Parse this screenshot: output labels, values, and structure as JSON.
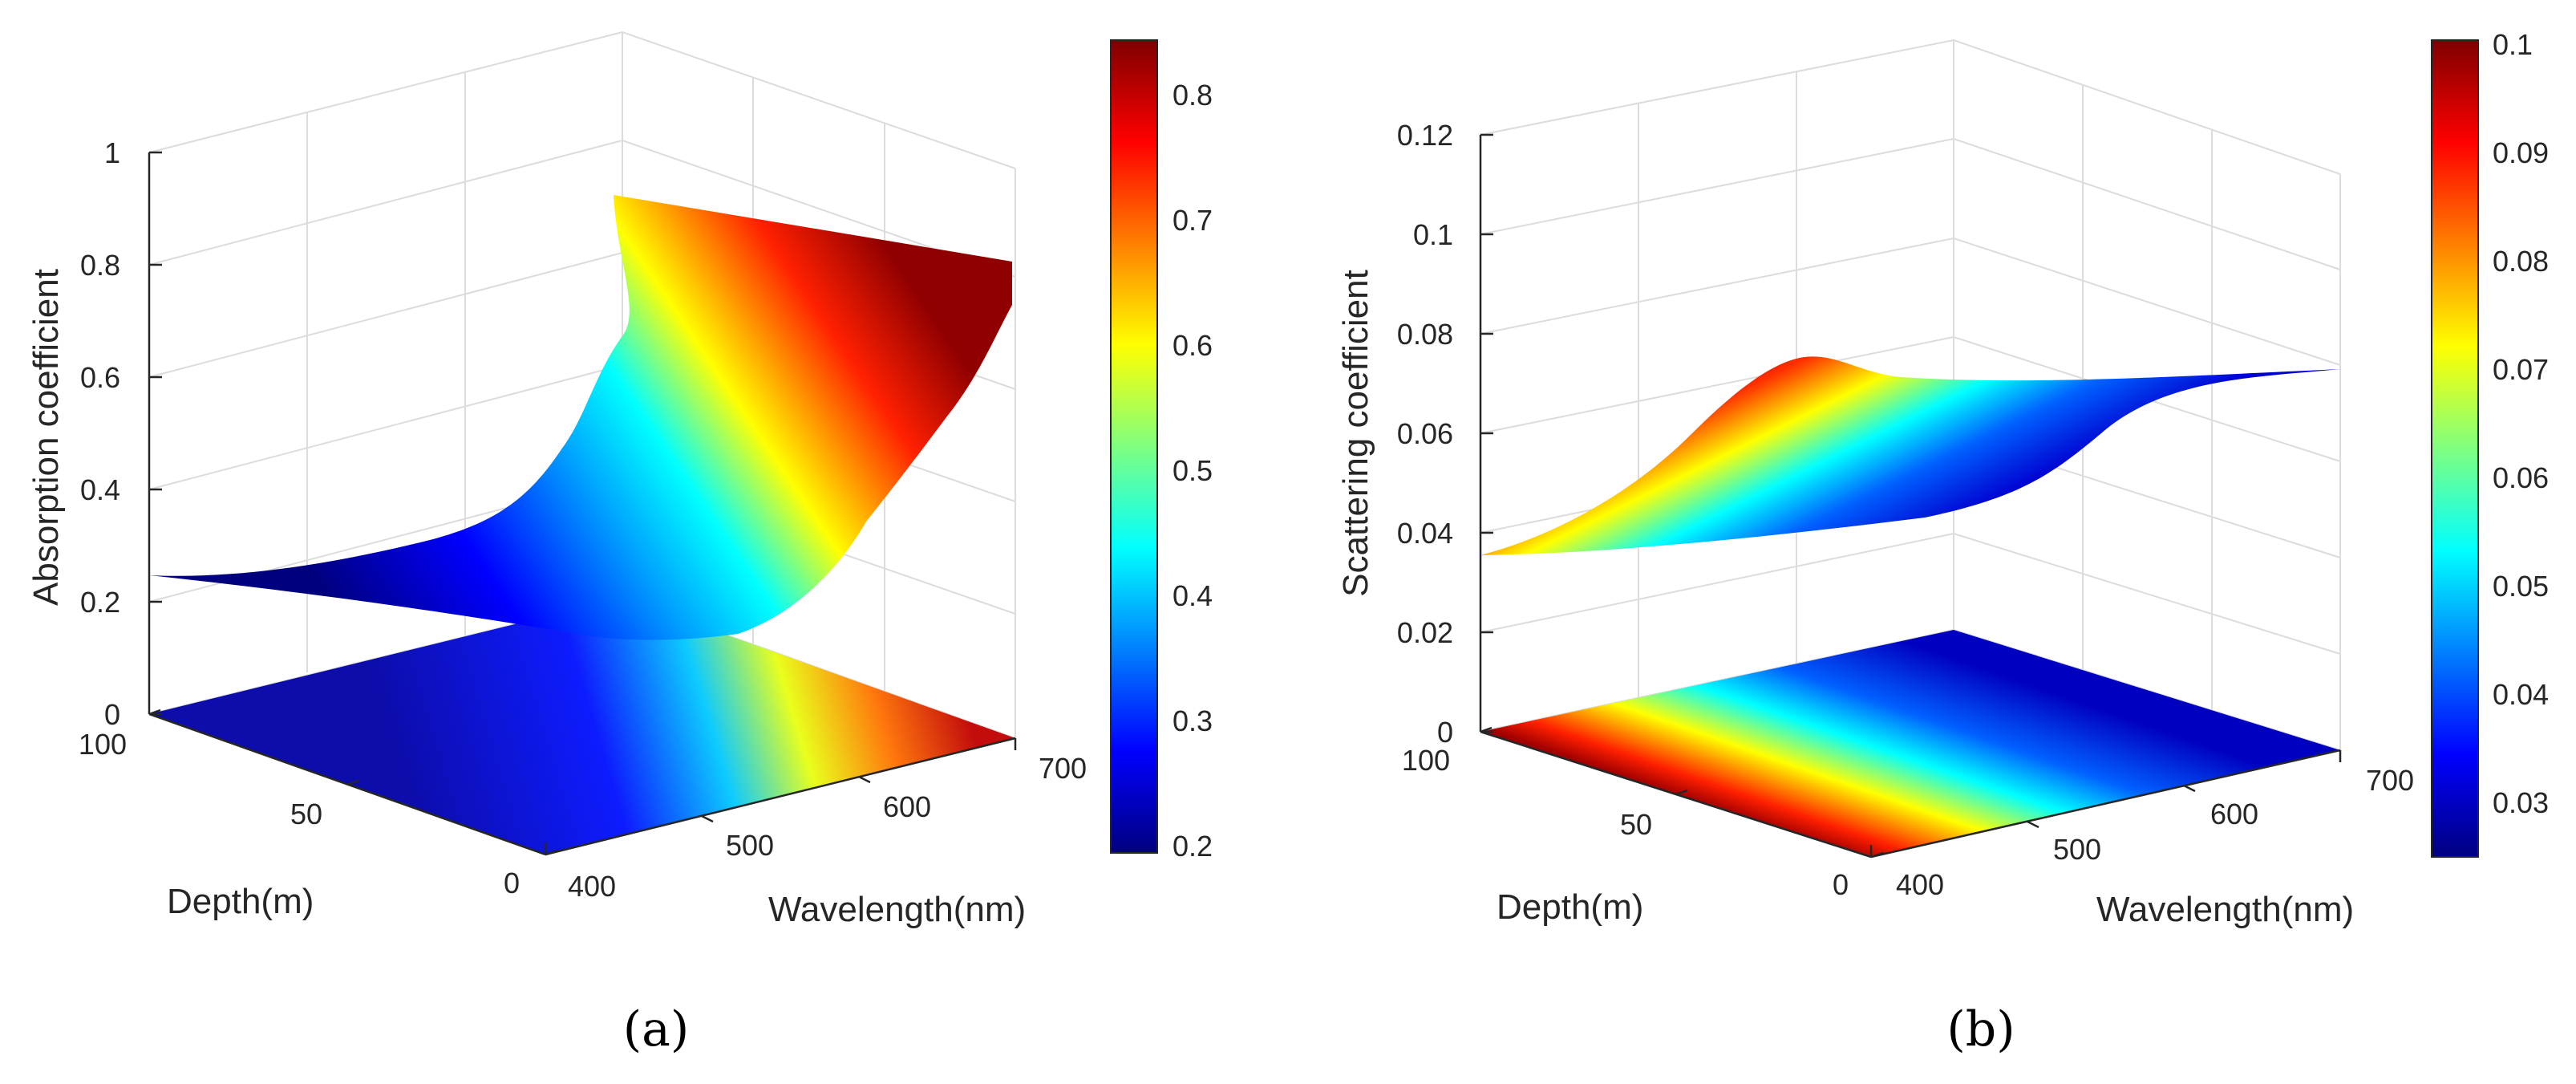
{
  "chart_data": [
    {
      "type": "surface3d",
      "caption": "(a)",
      "zlabel": "Absorption coefficient",
      "xlabel": "Wavelength(nm)",
      "ylabel": "Depth(m)",
      "xlim": [
        400,
        700
      ],
      "ylim": [
        0,
        100
      ],
      "zlim": [
        0,
        1
      ],
      "xticks": [
        "400",
        "500",
        "600",
        "700"
      ],
      "yticks": [
        "0",
        "50",
        "100"
      ],
      "zticks": [
        "0",
        "0.2",
        "0.4",
        "0.6",
        "0.8",
        "1"
      ],
      "colorbar": {
        "range": [
          0.2,
          0.85
        ],
        "ticks": [
          "0.2",
          "0.3",
          "0.4",
          "0.5",
          "0.6",
          "0.7",
          "0.8"
        ]
      },
      "colormap": "jet",
      "grid": true,
      "projection": "contour at z = 0",
      "profiles": {
        "wavelength_nm": [
          400,
          450,
          500,
          550,
          600,
          650,
          700
        ],
        "depth_100m_surface_edge": [
          0.25,
          0.23,
          0.21,
          0.2,
          0.21,
          0.22,
          0.22
        ],
        "depth_0m_surface_edge": [
          0.84,
          0.83,
          0.82,
          0.8,
          0.79,
          0.78,
          0.76
        ]
      }
    },
    {
      "type": "surface3d",
      "caption": "(b)",
      "zlabel": "Scattering coefficient",
      "xlabel": "Wavelength(nm)",
      "ylabel": "Depth(m)",
      "xlim": [
        400,
        700
      ],
      "ylim": [
        0,
        100
      ],
      "zlim": [
        0,
        0.12
      ],
      "xticks": [
        "400",
        "500",
        "600",
        "700"
      ],
      "yticks": [
        "0",
        "50",
        "100"
      ],
      "zticks": [
        "0",
        "0.02",
        "0.04",
        "0.06",
        "0.08",
        "0.1",
        "0.12"
      ],
      "colorbar": {
        "range": [
          0.025,
          0.1
        ],
        "ticks": [
          "0.03",
          "0.04",
          "0.05",
          "0.06",
          "0.07",
          "0.08",
          "0.09",
          "0.1"
        ]
      },
      "colormap": "jet",
      "grid": true,
      "projection": "contour at z = 0",
      "profiles": {
        "wavelength_nm": [
          400,
          450,
          500,
          550,
          600,
          650,
          700
        ],
        "depth_100m_surface_edge": [
          0.03,
          0.029,
          0.028,
          0.027,
          0.026,
          0.0255,
          0.025
        ],
        "depth_0m_surface_edge": [
          0.1,
          0.098,
          0.095,
          0.092,
          0.09,
          0.088,
          0.086
        ]
      }
    }
  ]
}
